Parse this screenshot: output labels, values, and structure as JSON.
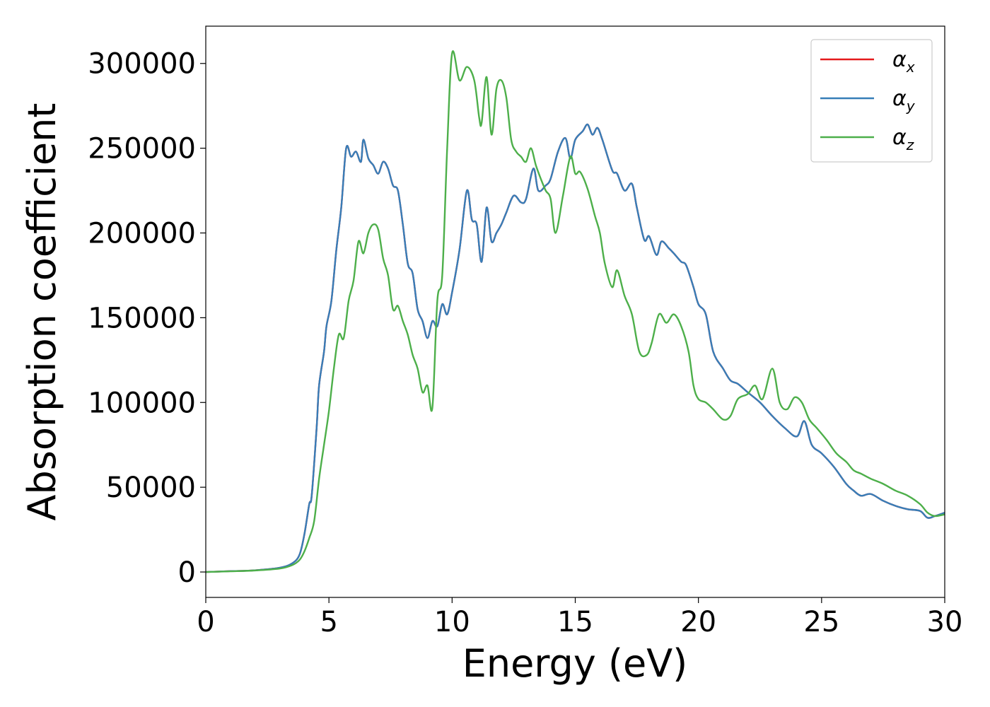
{
  "chart_data": {
    "type": "line",
    "title": "",
    "xlabel": "Energy (eV)",
    "ylabel": "Absorption coefficient",
    "xlim": [
      0,
      30
    ],
    "ylim": [
      -15000,
      322000
    ],
    "x_ticks": [
      0,
      5,
      10,
      15,
      20,
      25,
      30
    ],
    "y_ticks": [
      0,
      50000,
      100000,
      150000,
      200000,
      250000,
      300000
    ],
    "x_tick_labels": [
      "0",
      "5",
      "10",
      "15",
      "20",
      "25",
      "30"
    ],
    "y_tick_labels": [
      "0",
      "50000",
      "100000",
      "150000",
      "200000",
      "250000",
      "300000"
    ],
    "legend_position": "top-right",
    "series": [
      {
        "name": "α_x",
        "symbol": "α",
        "subscript": "x",
        "color": "#e41a1c",
        "x": [
          0,
          1,
          2,
          3,
          3.5,
          3.8,
          4,
          4.2,
          4.3,
          4.5,
          4.6,
          4.8,
          4.9,
          5.1,
          5.3,
          5.5,
          5.7,
          5.9,
          6.1,
          6.3,
          6.4,
          6.6,
          6.8,
          7.0,
          7.2,
          7.4,
          7.6,
          7.8,
          8.0,
          8.2,
          8.4,
          8.6,
          8.8,
          9.0,
          9.2,
          9.4,
          9.6,
          9.8,
          10.0,
          10.3,
          10.6,
          10.8,
          11.0,
          11.2,
          11.4,
          11.6,
          11.8,
          12.0,
          12.2,
          12.5,
          12.8,
          13.0,
          13.3,
          13.5,
          13.8,
          14.0,
          14.3,
          14.6,
          14.8,
          15.0,
          15.3,
          15.5,
          15.7,
          15.9,
          16.1,
          16.5,
          16.7,
          17.0,
          17.3,
          17.5,
          17.8,
          18.0,
          18.3,
          18.5,
          18.8,
          19.0,
          19.3,
          19.5,
          19.8,
          20.0,
          20.3,
          20.6,
          21.0,
          21.3,
          21.6,
          22.0,
          22.5,
          23.0,
          23.5,
          24.0,
          24.3,
          24.6,
          25.0,
          25.5,
          26.0,
          26.3,
          26.6,
          27.0,
          27.5,
          28.0,
          28.5,
          29.0,
          29.3,
          29.6,
          30.0
        ],
        "y": [
          0,
          500,
          1000,
          2500,
          5000,
          10000,
          22000,
          40000,
          45000,
          85000,
          110000,
          130000,
          145000,
          160000,
          190000,
          215000,
          250000,
          245000,
          248000,
          242000,
          255000,
          244000,
          240000,
          235000,
          242000,
          238000,
          228000,
          225000,
          205000,
          182000,
          176000,
          155000,
          148000,
          138000,
          148000,
          145000,
          158000,
          152000,
          165000,
          190000,
          225000,
          208000,
          205000,
          183000,
          215000,
          195000,
          200000,
          205000,
          212000,
          222000,
          218000,
          220000,
          238000,
          225000,
          228000,
          232000,
          248000,
          256000,
          244000,
          255000,
          260000,
          264000,
          258000,
          262000,
          255000,
          237000,
          235000,
          225000,
          229000,
          215000,
          196000,
          198000,
          187000,
          195000,
          191000,
          188000,
          183000,
          181000,
          168000,
          158000,
          152000,
          130000,
          120000,
          113000,
          111000,
          106000,
          100000,
          92000,
          85000,
          80000,
          89000,
          75000,
          70000,
          62000,
          52000,
          48000,
          45000,
          46000,
          42000,
          39000,
          37000,
          36000,
          32000,
          33000,
          35000
        ]
      },
      {
        "name": "α_y",
        "symbol": "α",
        "subscript": "y",
        "color": "#377eb8",
        "x": [
          0,
          1,
          2,
          3,
          3.5,
          3.8,
          4,
          4.2,
          4.3,
          4.5,
          4.6,
          4.8,
          4.9,
          5.1,
          5.3,
          5.5,
          5.7,
          5.9,
          6.1,
          6.3,
          6.4,
          6.6,
          6.8,
          7.0,
          7.2,
          7.4,
          7.6,
          7.8,
          8.0,
          8.2,
          8.4,
          8.6,
          8.8,
          9.0,
          9.2,
          9.4,
          9.6,
          9.8,
          10.0,
          10.3,
          10.6,
          10.8,
          11.0,
          11.2,
          11.4,
          11.6,
          11.8,
          12.0,
          12.2,
          12.5,
          12.8,
          13.0,
          13.3,
          13.5,
          13.8,
          14.0,
          14.3,
          14.6,
          14.8,
          15.0,
          15.3,
          15.5,
          15.7,
          15.9,
          16.1,
          16.5,
          16.7,
          17.0,
          17.3,
          17.5,
          17.8,
          18.0,
          18.3,
          18.5,
          18.8,
          19.0,
          19.3,
          19.5,
          19.8,
          20.0,
          20.3,
          20.6,
          21.0,
          21.3,
          21.6,
          22.0,
          22.5,
          23.0,
          23.5,
          24.0,
          24.3,
          24.6,
          25.0,
          25.5,
          26.0,
          26.3,
          26.6,
          27.0,
          27.5,
          28.0,
          28.5,
          29.0,
          29.3,
          29.6,
          30.0
        ],
        "y": [
          0,
          500,
          1000,
          2500,
          5000,
          10000,
          22000,
          40000,
          45000,
          85000,
          110000,
          130000,
          145000,
          160000,
          190000,
          215000,
          250000,
          245000,
          248000,
          242000,
          255000,
          244000,
          240000,
          235000,
          242000,
          238000,
          228000,
          225000,
          205000,
          182000,
          176000,
          155000,
          148000,
          138000,
          148000,
          145000,
          158000,
          152000,
          165000,
          190000,
          225000,
          208000,
          205000,
          183000,
          215000,
          195000,
          200000,
          205000,
          212000,
          222000,
          218000,
          220000,
          238000,
          225000,
          228000,
          232000,
          248000,
          256000,
          244000,
          255000,
          260000,
          264000,
          258000,
          262000,
          255000,
          237000,
          235000,
          225000,
          229000,
          215000,
          196000,
          198000,
          187000,
          195000,
          191000,
          188000,
          183000,
          181000,
          168000,
          158000,
          152000,
          130000,
          120000,
          113000,
          111000,
          106000,
          100000,
          92000,
          85000,
          80000,
          89000,
          75000,
          70000,
          62000,
          52000,
          48000,
          45000,
          46000,
          42000,
          39000,
          37000,
          36000,
          32000,
          33000,
          35000
        ]
      },
      {
        "name": "α_z",
        "symbol": "α",
        "subscript": "z",
        "color": "#4daf4a",
        "x": [
          0,
          1,
          2,
          3,
          3.5,
          3.8,
          4,
          4.2,
          4.4,
          4.6,
          4.8,
          5.0,
          5.2,
          5.4,
          5.6,
          5.8,
          6.0,
          6.2,
          6.4,
          6.6,
          6.8,
          7.0,
          7.2,
          7.4,
          7.6,
          7.8,
          8.0,
          8.2,
          8.4,
          8.6,
          8.8,
          9.0,
          9.2,
          9.4,
          9.6,
          9.8,
          10.0,
          10.3,
          10.6,
          10.9,
          11.1,
          11.2,
          11.4,
          11.6,
          11.8,
          12.0,
          12.2,
          12.4,
          12.6,
          12.8,
          13.0,
          13.2,
          13.4,
          13.6,
          13.8,
          14.0,
          14.2,
          14.5,
          14.8,
          15.0,
          15.2,
          15.5,
          15.8,
          16.0,
          16.2,
          16.5,
          16.7,
          17.0,
          17.3,
          17.6,
          17.9,
          18.1,
          18.4,
          18.7,
          19.0,
          19.3,
          19.6,
          19.8,
          20.0,
          20.3,
          20.6,
          21.0,
          21.3,
          21.6,
          22.0,
          22.3,
          22.6,
          23.0,
          23.3,
          23.6,
          23.9,
          24.2,
          24.5,
          24.8,
          25.2,
          25.6,
          26.0,
          26.3,
          26.6,
          27.0,
          27.5,
          28.0,
          28.5,
          29.0,
          29.3,
          29.6,
          30.0
        ],
        "y": [
          0,
          400,
          900,
          2000,
          4000,
          7000,
          12000,
          20000,
          30000,
          55000,
          75000,
          95000,
          120000,
          140000,
          138000,
          160000,
          172000,
          195000,
          188000,
          200000,
          205000,
          202000,
          185000,
          175000,
          155000,
          157000,
          148000,
          140000,
          128000,
          120000,
          106000,
          110000,
          97000,
          160000,
          175000,
          250000,
          306000,
          290000,
          298000,
          290000,
          268000,
          265000,
          292000,
          258000,
          285000,
          290000,
          280000,
          255000,
          248000,
          245000,
          242000,
          250000,
          240000,
          232000,
          225000,
          220000,
          200000,
          222000,
          245000,
          235000,
          236000,
          226000,
          210000,
          200000,
          182000,
          168000,
          178000,
          163000,
          152000,
          130000,
          128000,
          135000,
          152000,
          147000,
          152000,
          145000,
          130000,
          110000,
          102000,
          100000,
          96000,
          90000,
          92000,
          102000,
          105000,
          110000,
          102000,
          120000,
          100000,
          96000,
          103000,
          100000,
          90000,
          85000,
          78000,
          70000,
          65000,
          60000,
          58000,
          55000,
          52000,
          48000,
          45000,
          40000,
          35000,
          33000,
          34000
        ]
      }
    ]
  }
}
